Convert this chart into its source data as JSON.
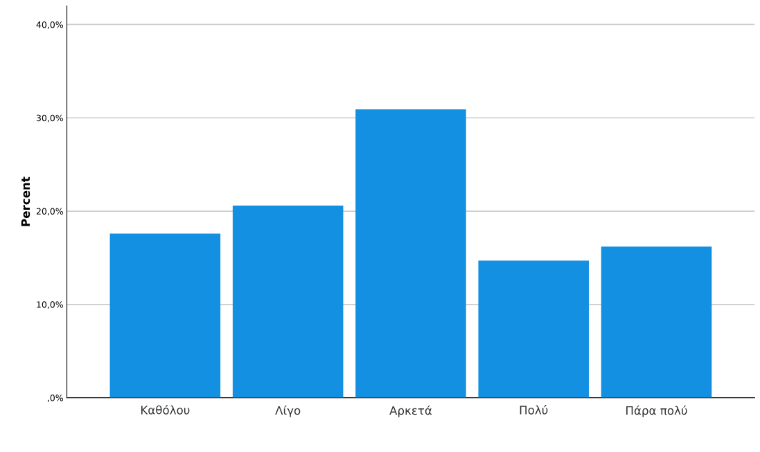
{
  "chart_data": {
    "type": "bar",
    "ylabel": "Percent",
    "categories": [
      "Καθόλου",
      "Λίγο",
      "Αρκετά",
      "Πολύ",
      "Πάρα πολύ"
    ],
    "values": [
      17.6,
      20.6,
      30.9,
      14.7,
      16.2
    ],
    "color": "#1490e3",
    "ylim": [
      0,
      42
    ],
    "yticks": [
      {
        "value": 0,
        "label": ",0%"
      },
      {
        "value": 10,
        "label": "10,0%"
      },
      {
        "value": 20,
        "label": "20,0%"
      },
      {
        "value": 30,
        "label": "30,0%"
      },
      {
        "value": 40,
        "label": "40,0%"
      }
    ],
    "grid": "y",
    "legend": false
  }
}
